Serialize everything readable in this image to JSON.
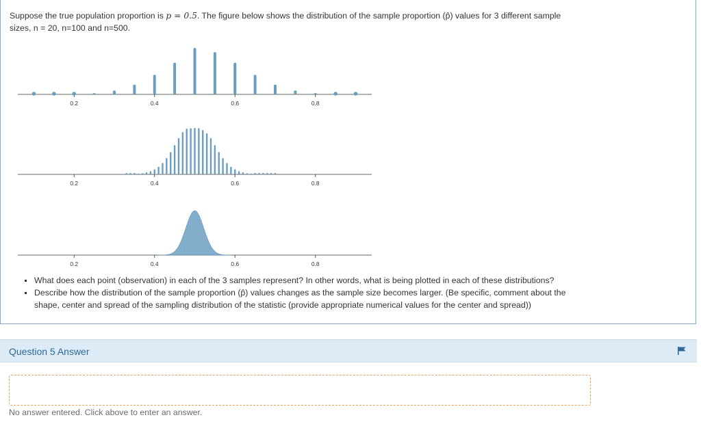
{
  "question": {
    "intro_part1": "Suppose the true population proportion is ",
    "intro_math": "p = 0.5",
    "intro_part2": ".  The figure below shows the distribution of the sample proportion (p̂) values for 3 different sample sizes, n = 20, n=100 and n=500.",
    "bullets": [
      "What does each point (observation) in each of the 3 samples represent? In other words, what is being plotted in each of these distributions?",
      "Describe how the distribution of the sample proportion (p̂) values changes as the sample size becomes larger. (Be specific, comment about the shape, center and spread of the sampling distribution of the statistic (provide appropriate numerical values for the center and spread))"
    ]
  },
  "chart_data": [
    {
      "type": "bar",
      "xlim": [
        0.06,
        0.94
      ],
      "x_ticks": [
        "0.2",
        "0.4",
        "0.6",
        "0.8"
      ],
      "x": [
        0.1,
        0.15,
        0.2,
        0.25,
        0.3,
        0.35,
        0.4,
        0.45,
        0.5,
        0.55,
        0.6,
        0.65,
        0.7,
        0.75,
        0.8,
        0.85,
        0.9
      ],
      "values": [
        0.0,
        0.0,
        0.001,
        0.005,
        0.015,
        0.037,
        0.074,
        0.12,
        0.176,
        0.16,
        0.12,
        0.074,
        0.037,
        0.015,
        0.005,
        0.001,
        0.0
      ],
      "color": "#6a9ec0"
    },
    {
      "type": "bar",
      "xlim": [
        0.06,
        0.94
      ],
      "x_ticks": [
        "0.2",
        "0.4",
        "0.6",
        "0.8"
      ],
      "x": [
        0.33,
        0.34,
        0.35,
        0.36,
        0.37,
        0.38,
        0.39,
        0.4,
        0.41,
        0.42,
        0.43,
        0.44,
        0.45,
        0.46,
        0.47,
        0.48,
        0.49,
        0.5,
        0.51,
        0.52,
        0.53,
        0.54,
        0.55,
        0.56,
        0.57,
        0.58,
        0.59,
        0.6,
        0.61,
        0.62,
        0.63,
        0.64,
        0.65,
        0.66,
        0.67,
        0.68,
        0.69,
        0.7
      ],
      "values": [
        0.0001,
        0.0002,
        0.0004,
        0.0007,
        0.0011,
        0.0018,
        0.0028,
        0.0044,
        0.0066,
        0.0098,
        0.014,
        0.0192,
        0.025,
        0.031,
        0.0362,
        0.0392,
        0.0396,
        0.0398,
        0.0396,
        0.038,
        0.0352,
        0.031,
        0.025,
        0.0192,
        0.014,
        0.0098,
        0.0066,
        0.0044,
        0.0028,
        0.0018,
        0.0011,
        0.0007,
        0.0004,
        0.0002,
        0.0001,
        0.0001,
        0.0001,
        0.0001
      ],
      "color": "#6a9ec0"
    },
    {
      "type": "area",
      "xlim": [
        0.06,
        0.94
      ],
      "x_ticks": [
        "0.2",
        "0.4",
        "0.6",
        "0.8"
      ],
      "center": 0.5,
      "sd": 0.0224,
      "color": "#6a9ec0"
    }
  ],
  "answer": {
    "title": "Question 5 Answer",
    "empty_message": "No answer entered. Click above to enter an answer.",
    "flag_icon": "flag-icon"
  }
}
